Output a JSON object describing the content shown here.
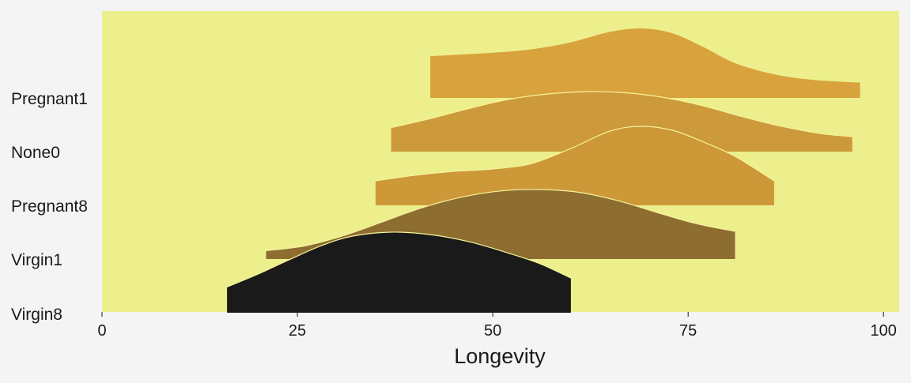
{
  "chart_data": {
    "type": "area",
    "subtype": "ridgeline",
    "title": "",
    "xlabel": "Longevity",
    "ylabel": "",
    "xlim": [
      0,
      102
    ],
    "xticks": [
      0,
      25,
      50,
      75,
      100
    ],
    "grid": false,
    "legend": "none",
    "plot_background": "#ecef8c",
    "page_background": "#f4f4f4",
    "outline_color": "#f6f39c",
    "series": [
      {
        "name": "Pregnant1",
        "color": "#d8a23c",
        "x_range": [
          42,
          97
        ],
        "curve": [
          [
            42,
            0.6
          ],
          [
            50,
            0.65
          ],
          [
            55,
            0.7
          ],
          [
            60,
            0.8
          ],
          [
            65,
            0.95
          ],
          [
            69,
            1.0
          ],
          [
            73,
            0.93
          ],
          [
            77,
            0.73
          ],
          [
            81,
            0.5
          ],
          [
            86,
            0.34
          ],
          [
            91,
            0.26
          ],
          [
            97,
            0.22
          ]
        ]
      },
      {
        "name": "None0",
        "color": "#cc9a3a",
        "x_range": [
          37,
          96
        ],
        "curve": [
          [
            37,
            0.4
          ],
          [
            42,
            0.55
          ],
          [
            47,
            0.72
          ],
          [
            52,
            0.87
          ],
          [
            57,
            0.96
          ],
          [
            62,
            1.0
          ],
          [
            67,
            0.98
          ],
          [
            72,
            0.9
          ],
          [
            77,
            0.76
          ],
          [
            82,
            0.58
          ],
          [
            87,
            0.42
          ],
          [
            92,
            0.3
          ],
          [
            96,
            0.25
          ]
        ]
      },
      {
        "name": "Pregnant8",
        "color": "#cc9838",
        "x_range": [
          35,
          86
        ],
        "curve": [
          [
            35,
            0.31
          ],
          [
            40,
            0.38
          ],
          [
            45,
            0.43
          ],
          [
            50,
            0.46
          ],
          [
            55,
            0.53
          ],
          [
            60,
            0.72
          ],
          [
            65,
            0.94
          ],
          [
            69,
            1.0
          ],
          [
            73,
            0.95
          ],
          [
            77,
            0.8
          ],
          [
            81,
            0.62
          ],
          [
            86,
            0.31
          ]
        ]
      },
      {
        "name": "Virgin1",
        "color": "#8e6d30",
        "x_range": [
          21,
          81
        ],
        "curve": [
          [
            21,
            0.12
          ],
          [
            26,
            0.19
          ],
          [
            31,
            0.34
          ],
          [
            36,
            0.54
          ],
          [
            41,
            0.74
          ],
          [
            46,
            0.89
          ],
          [
            51,
            0.98
          ],
          [
            56,
            1.0
          ],
          [
            61,
            0.96
          ],
          [
            66,
            0.84
          ],
          [
            71,
            0.67
          ],
          [
            76,
            0.51
          ],
          [
            81,
            0.4
          ]
        ]
      },
      {
        "name": "Virgin8",
        "color": "#1a1a1a",
        "x_range": [
          16,
          60
        ],
        "curve": [
          [
            16,
            0.32
          ],
          [
            20,
            0.48
          ],
          [
            24,
            0.66
          ],
          [
            28,
            0.83
          ],
          [
            32,
            0.95
          ],
          [
            37,
            1.0
          ],
          [
            42,
            0.97
          ],
          [
            47,
            0.88
          ],
          [
            52,
            0.74
          ],
          [
            56,
            0.61
          ],
          [
            60,
            0.43
          ]
        ]
      }
    ]
  }
}
